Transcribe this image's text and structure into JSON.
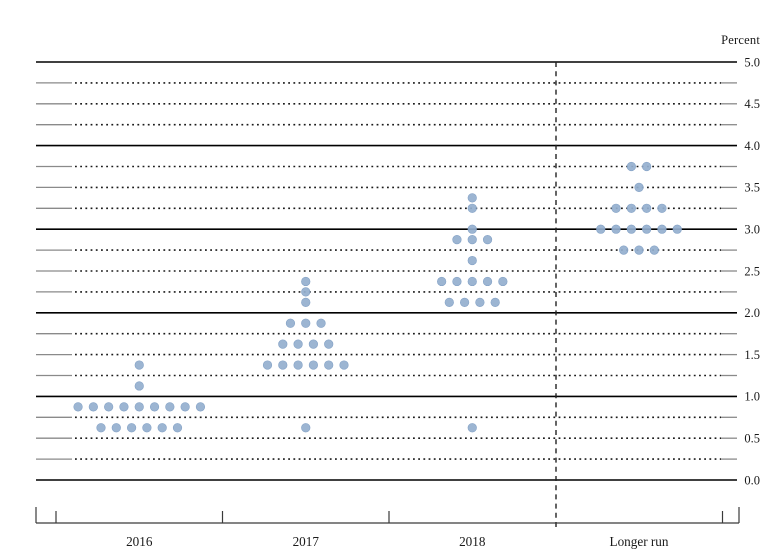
{
  "header": {
    "unit_label": "Percent"
  },
  "colors": {
    "dot_fill": "#94afce",
    "dot_edge": "#84a2c6",
    "solid_line": "#000000",
    "dotted_line": "#1a1a1a",
    "line_end_segment": "#8a8a8a",
    "axis": "#3a3a3a",
    "separator_dash": "#222222",
    "label_text": "#1a1a1a"
  },
  "chart_data": {
    "type": "scatter",
    "subtype": "fomc-dot-plot",
    "ylabel": "Percent",
    "ylim": [
      0.0,
      5.0
    ],
    "y_gridline_step": 0.25,
    "y_label_step": 0.5,
    "y_solid_lines_at": [
      0.0,
      1.0,
      2.0,
      3.0,
      4.0,
      5.0
    ],
    "y_tick_labels": [
      "5.0",
      "4.5",
      "4.0",
      "3.5",
      "3.0",
      "2.5",
      "2.0",
      "1.5",
      "1.0",
      "0.5",
      "0.0"
    ],
    "grid": "dotted-quarters",
    "legend_position": "none",
    "categories": [
      "2016",
      "2017",
      "2018",
      "Longer run"
    ],
    "separator_before_category": "Longer run",
    "series": [
      {
        "category": "2016",
        "dots": [
          {
            "rate": 1.375,
            "count": 1
          },
          {
            "rate": 1.125,
            "count": 1
          },
          {
            "rate": 0.875,
            "count": 9
          },
          {
            "rate": 0.625,
            "count": 6
          }
        ]
      },
      {
        "category": "2017",
        "dots": [
          {
            "rate": 2.375,
            "count": 1
          },
          {
            "rate": 2.25,
            "count": 1
          },
          {
            "rate": 2.125,
            "count": 1
          },
          {
            "rate": 1.875,
            "count": 3
          },
          {
            "rate": 1.625,
            "count": 4
          },
          {
            "rate": 1.375,
            "count": 6
          },
          {
            "rate": 0.625,
            "count": 1
          }
        ]
      },
      {
        "category": "2018",
        "dots": [
          {
            "rate": 3.375,
            "count": 1
          },
          {
            "rate": 3.25,
            "count": 1
          },
          {
            "rate": 3.0,
            "count": 1
          },
          {
            "rate": 2.875,
            "count": 3
          },
          {
            "rate": 2.625,
            "count": 1
          },
          {
            "rate": 2.375,
            "count": 5
          },
          {
            "rate": 2.125,
            "count": 4
          },
          {
            "rate": 0.625,
            "count": 1
          }
        ]
      },
      {
        "category": "Longer run",
        "dots": [
          {
            "rate": 3.75,
            "count": 2
          },
          {
            "rate": 3.5,
            "count": 1
          },
          {
            "rate": 3.25,
            "count": 4
          },
          {
            "rate": 3.0,
            "count": 6
          },
          {
            "rate": 2.75,
            "count": 3
          }
        ]
      }
    ]
  }
}
